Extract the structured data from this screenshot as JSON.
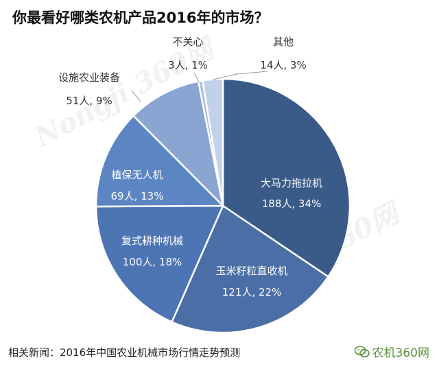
{
  "page": {
    "title": "你最看好哪类农机产品2016年的市场？",
    "footer": "相关新闻：2016年中国农业机械市场行情走势预测",
    "brand": "农机360网",
    "watermark_text": "Nongji 360网"
  },
  "chart_data": {
    "type": "pie",
    "title": "你最看好哪类农机产品2016年的市场？",
    "slices": [
      {
        "label": "大马力拖拉机",
        "count_label": "188人, 34%",
        "value": 188,
        "percent": 34,
        "color": "#3a5a88",
        "text_color": "#ffffff"
      },
      {
        "label": "玉米籽粒直收机",
        "count_label": "121人, 22%",
        "value": 121,
        "percent": 22,
        "color": "#4a6ea5",
        "text_color": "#ffffff"
      },
      {
        "label": "复式耕种机械",
        "count_label": "100人, 18%",
        "value": 100,
        "percent": 18,
        "color": "#4d74b3",
        "text_color": "#ffffff"
      },
      {
        "label": "植保无人机",
        "count_label": "69人, 13%",
        "value": 69,
        "percent": 13,
        "color": "#5c85c4",
        "text_color": "#ffffff"
      },
      {
        "label": "设施农业装备",
        "count_label": "51人, 9%",
        "value": 51,
        "percent": 9,
        "color": "#8aa5d2",
        "text_color": "#333333"
      },
      {
        "label": "不关心",
        "count_label": "3人, 1%",
        "value": 3,
        "percent": 1,
        "color": "#a9bde0",
        "text_color": "#333333"
      },
      {
        "label": "其他",
        "count_label": "14人, 3%",
        "value": 14,
        "percent": 3,
        "color": "#c2d1ea",
        "text_color": "#333333"
      }
    ]
  }
}
